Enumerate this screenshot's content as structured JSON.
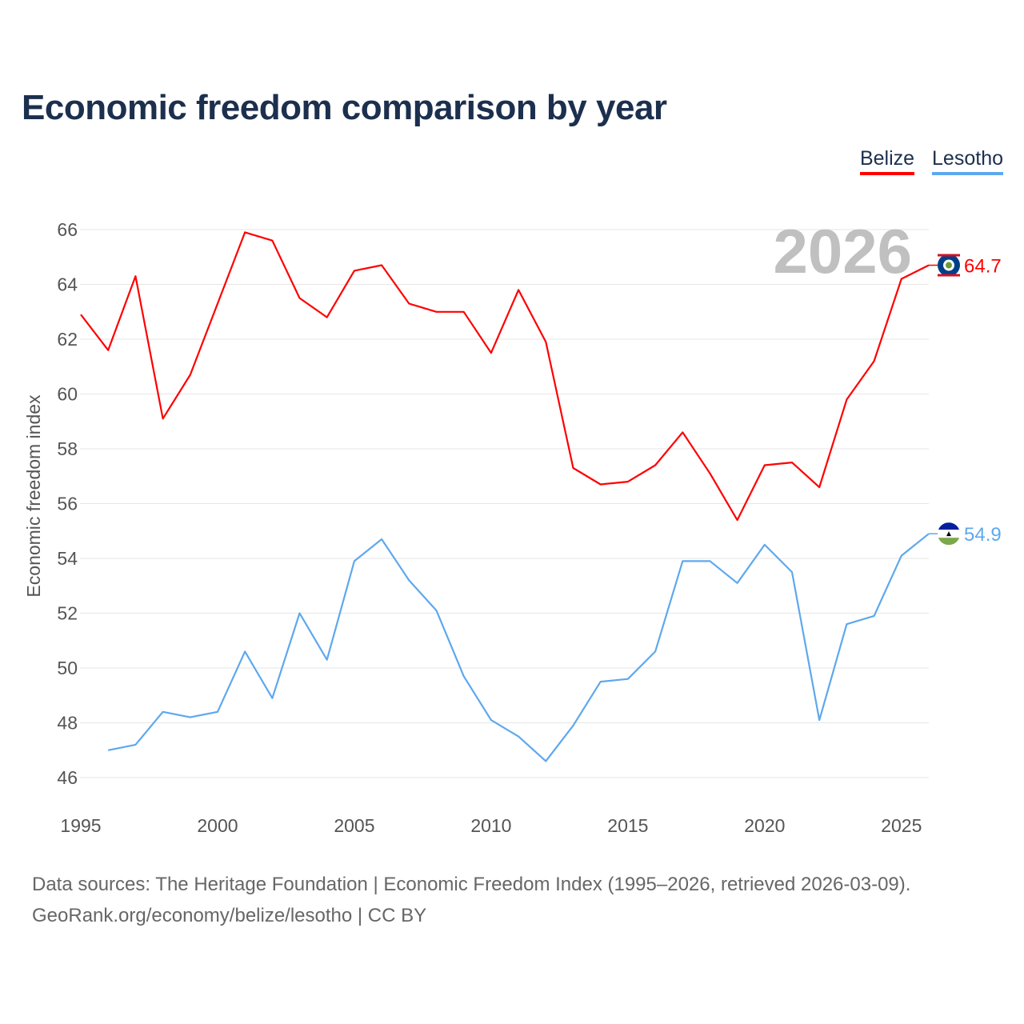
{
  "title": "Economic freedom comparison by year",
  "legend": [
    {
      "label": "Belize",
      "color": "#ff0000"
    },
    {
      "label": "Lesotho",
      "color": "#5ea8ee"
    }
  ],
  "watermark_year": "2026",
  "footer": {
    "line1": "Data sources: The Heritage Foundation | Economic Freedom Index (1995–2026, retrieved 2026-03-09).",
    "line2": "GeoRank.org/economy/belize/lesotho | CC BY"
  },
  "chart_data": {
    "type": "line",
    "title": "Economic freedom comparison by year",
    "xlabel": "",
    "ylabel": "Economic freedom index",
    "xlim": [
      1995,
      2026
    ],
    "ylim": [
      46,
      66
    ],
    "x_ticks": [
      "1995",
      "2000",
      "2005",
      "2010",
      "2015",
      "2020",
      "2025"
    ],
    "y_ticks": [
      "46",
      "48",
      "50",
      "52",
      "54",
      "56",
      "58",
      "60",
      "62",
      "64",
      "66"
    ],
    "grid": true,
    "legend_position": "top-right",
    "series": [
      {
        "name": "Belize",
        "color": "#ff0000",
        "end_label": "64.7",
        "x": [
          1995,
          1996,
          1997,
          1998,
          1999,
          2000,
          2001,
          2002,
          2003,
          2004,
          2005,
          2006,
          2007,
          2008,
          2009,
          2010,
          2011,
          2012,
          2013,
          2014,
          2015,
          2016,
          2017,
          2018,
          2019,
          2020,
          2021,
          2022,
          2023,
          2024,
          2025,
          2026
        ],
        "values": [
          62.9,
          61.6,
          64.3,
          59.1,
          60.7,
          63.3,
          65.9,
          65.6,
          63.5,
          62.8,
          64.5,
          64.7,
          63.3,
          63.0,
          63.0,
          61.5,
          63.8,
          61.9,
          57.3,
          56.7,
          56.8,
          57.4,
          58.6,
          57.1,
          55.4,
          57.4,
          57.5,
          56.6,
          59.8,
          61.2,
          64.2,
          64.7
        ]
      },
      {
        "name": "Lesotho",
        "color": "#5ea8ee",
        "end_label": "54.9",
        "x": [
          1996,
          1997,
          1998,
          1999,
          2000,
          2001,
          2002,
          2003,
          2004,
          2005,
          2006,
          2007,
          2008,
          2009,
          2010,
          2011,
          2012,
          2013,
          2014,
          2015,
          2016,
          2017,
          2018,
          2019,
          2020,
          2021,
          2022,
          2023,
          2024,
          2025,
          2026
        ],
        "values": [
          47.0,
          47.2,
          48.4,
          48.2,
          48.4,
          50.6,
          48.9,
          52.0,
          50.3,
          53.9,
          54.7,
          53.2,
          52.1,
          49.7,
          48.1,
          47.5,
          46.6,
          47.9,
          49.5,
          49.6,
          50.6,
          53.9,
          53.9,
          53.1,
          54.5,
          53.5,
          48.1,
          51.6,
          51.9,
          54.1,
          54.9
        ]
      }
    ]
  }
}
